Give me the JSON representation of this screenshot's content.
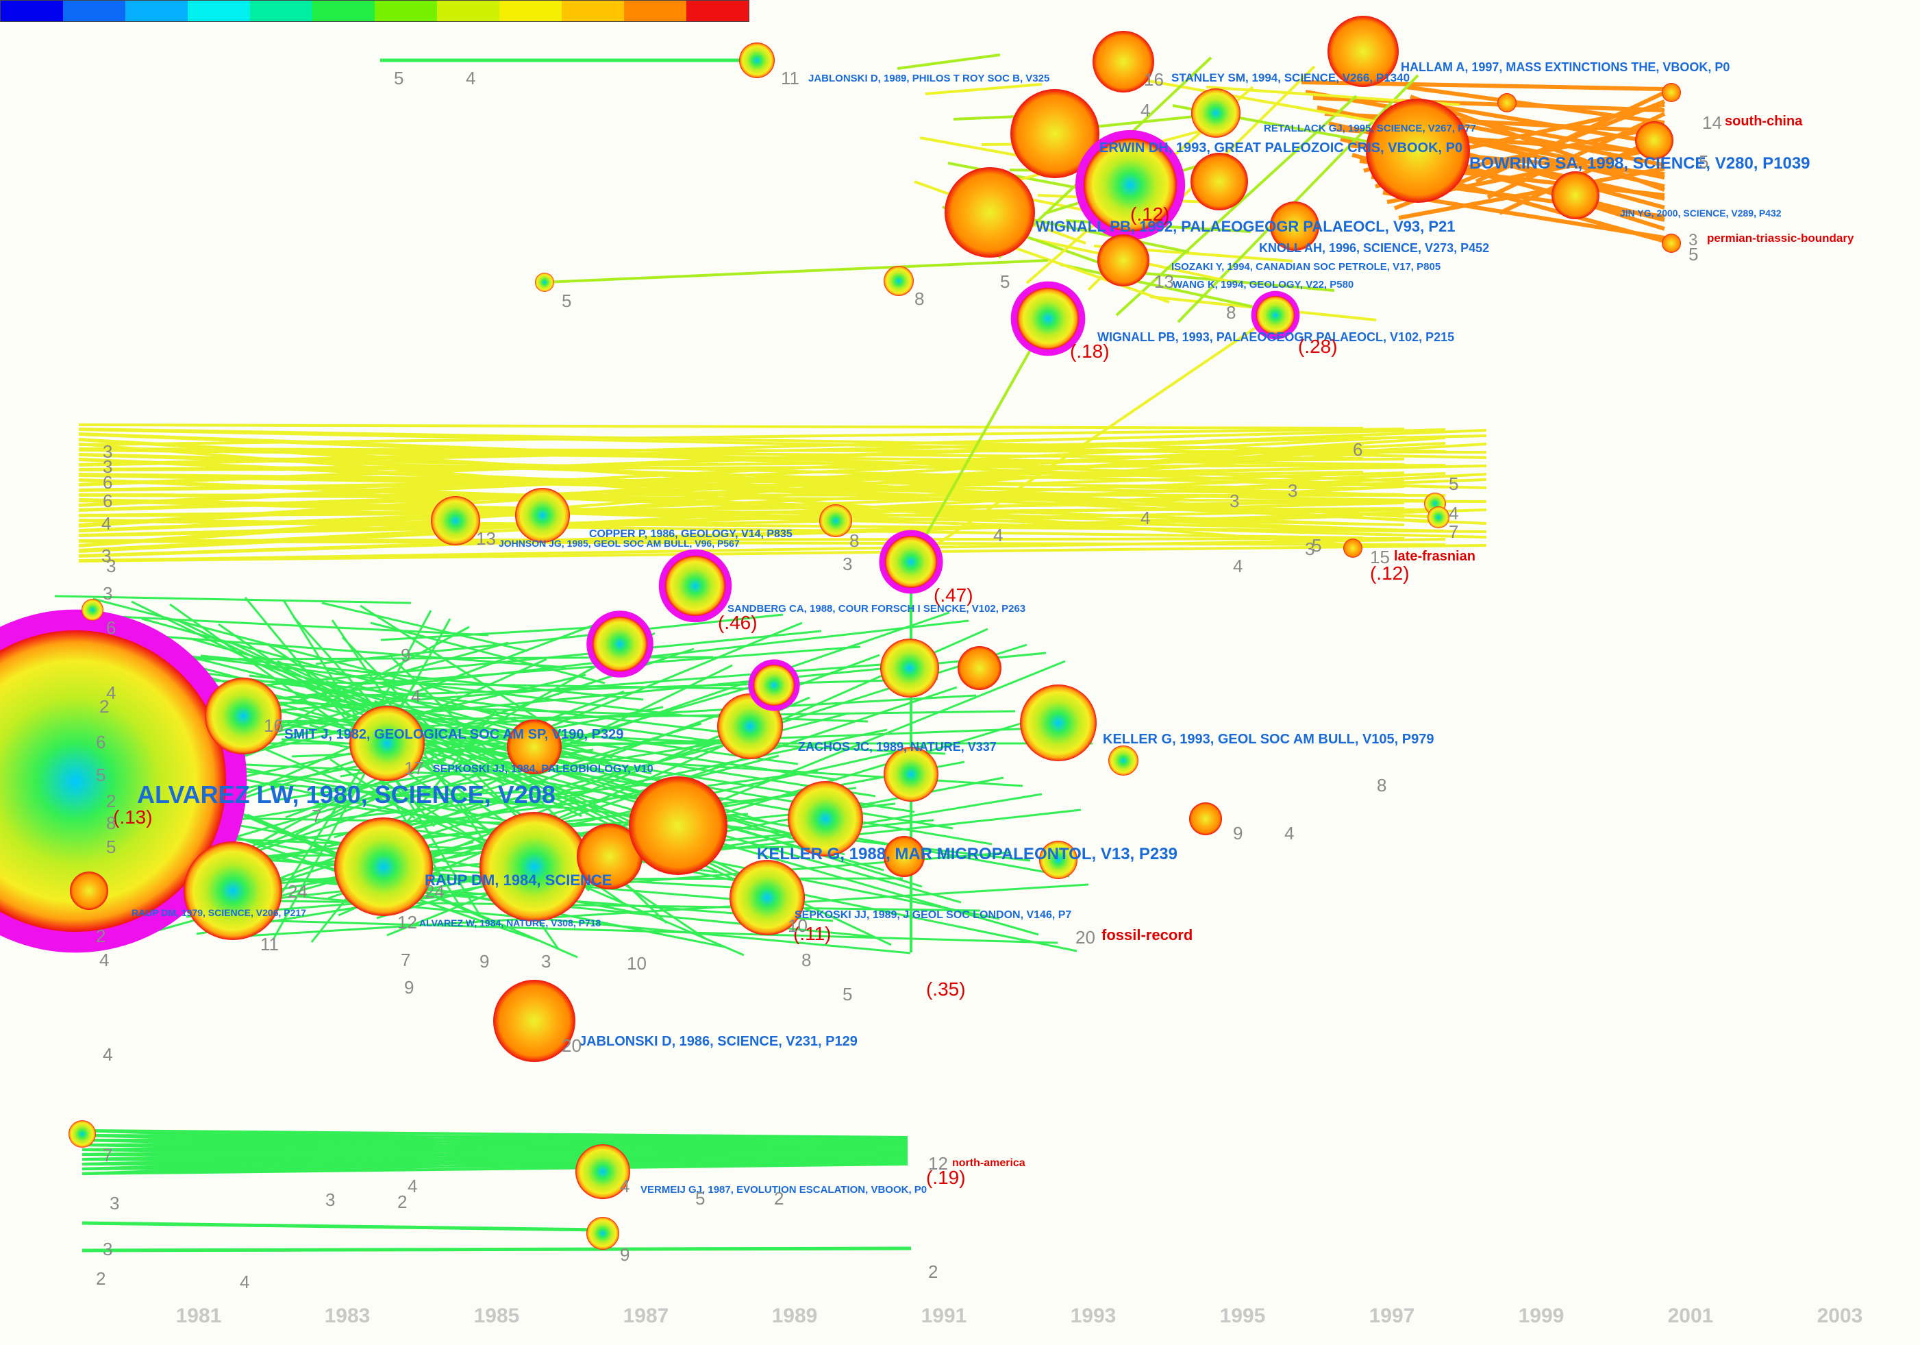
{
  "palette": {
    "green": "#33ee55",
    "yellow": "#eef22a",
    "orange": "#ff9011",
    "red": "#ee1111",
    "magenta": "#ee11ee",
    "label_blue": "#1a6ad8",
    "label_red": "#dd0000",
    "count_gray": "#8a8a8a",
    "year_gray": "#c8c8c8"
  },
  "legend_colors": [
    "#0000ee",
    "#0a6af5",
    "#06b0ff",
    "#00f0f0",
    "#00eea0",
    "#22ee44",
    "#77f000",
    "#cff000",
    "#f5ee00",
    "#ffc400",
    "#ff8800",
    "#ee1111"
  ],
  "timeline": {
    "years": [
      "1981",
      "1983",
      "1985",
      "1987",
      "1989",
      "1991",
      "1993",
      "1995",
      "1997",
      "1999",
      "2001",
      "2003"
    ]
  },
  "references": [
    {
      "label": "ALVAREZ LW, 1980, SCIENCE, V208",
      "size": "xl"
    },
    {
      "label": "BOWRING SA, 1998, SCIENCE, V280, P1039",
      "size": "l"
    },
    {
      "label": "KELLER G, 1988, MAR MICROPALEONTOL, V13, P239",
      "size": "l"
    },
    {
      "label": "KELLER G, 1993, GEOL SOC AM BULL, V105, P979",
      "size": "m"
    },
    {
      "label": "WIGNALL PB, 1992, PALAEOGEOGR PALAEOCL, V93, P21",
      "size": "m"
    },
    {
      "label": "ERWIN DH, 1993, GREAT PALEOZOIC CRIS, VBOOK, P0",
      "size": "m"
    },
    {
      "label": "RAUP DM, 1984, SCIENCE",
      "size": "m"
    },
    {
      "label": "JABLONSKI D, 1986, SCIENCE, V231, P129",
      "size": "m"
    },
    {
      "label": "SMIT J, 1982, GEOLOGICAL SOC AM SP, V190, P329",
      "size": "m"
    },
    {
      "label": "JABLONSKI D, 1989, PHILOS T ROY SOC B, V325",
      "size": "s"
    },
    {
      "label": "HALLAM A, 1997, MASS EXTINCTIONS THE, VBOOK, P0",
      "size": "s"
    },
    {
      "label": "STANLEY SM, 1994, SCIENCE, V266, P1340",
      "size": "s"
    },
    {
      "label": "RETALLACK GJ, 1995, SCIENCE, V267, P77",
      "size": "s"
    },
    {
      "label": "KNOLL AH, 1996, SCIENCE, V273, P452",
      "size": "s"
    },
    {
      "label": "ISOZAKI Y, 1994, CANADIAN SOC PETROLE, V17, P805",
      "size": "s"
    },
    {
      "label": "WANG K, 1994, GEOLOGY, V22, P580",
      "size": "s"
    },
    {
      "label": "WIGNALL PB, 1993, PALAEOGEOGR PALAEOCL, V102, P215",
      "size": "s"
    },
    {
      "label": "JIN YG, 2000, SCIENCE, V289, P432",
      "size": "s"
    },
    {
      "label": "COPPER P, 1986, GEOLOGY, V14, P835",
      "size": "s"
    },
    {
      "label": "JOHNSON JG, 1985, GEOL SOC AM BULL, V96, P567",
      "size": "s"
    },
    {
      "label": "SANDBERG CA, 1988, COUR FORSCH I SENCKE, V102, P263",
      "size": "s"
    },
    {
      "label": "SEPKOSKI JJ, 1984, PALEOBIOLOGY, V10",
      "size": "s"
    },
    {
      "label": "ZACHOS JC, 1989, NATURE, V337",
      "size": "s"
    },
    {
      "label": "RAUP DM, 1979, SCIENCE, V206, P217",
      "size": "s"
    },
    {
      "label": "ALVAREZ W, 1984, NATURE, V308, P718",
      "size": "s"
    },
    {
      "label": "SEPKOSKI JJ, 1989, J GEOL SOC LONDON, V146, P7",
      "size": "s"
    },
    {
      "label": "VERMEIJ GJ, 1987, EVOLUTION ESCALATION, VBOOK, P0",
      "size": "s"
    }
  ],
  "clusters": [
    {
      "label": "south-china",
      "count": "14"
    },
    {
      "label": "permian-triassic-boundary",
      "count": "3"
    },
    {
      "label": "late-frasnian",
      "count": "15"
    },
    {
      "label": "fossil-record",
      "count": "20"
    },
    {
      "label": "north-america",
      "count": "12"
    }
  ],
  "sigma_labels": [
    "(.13)",
    "(.18)",
    "(.28)",
    "(.47)",
    "(.46)",
    "(.12)",
    "(.35)",
    "(.19)",
    "(.11)",
    "(.12)"
  ]
}
